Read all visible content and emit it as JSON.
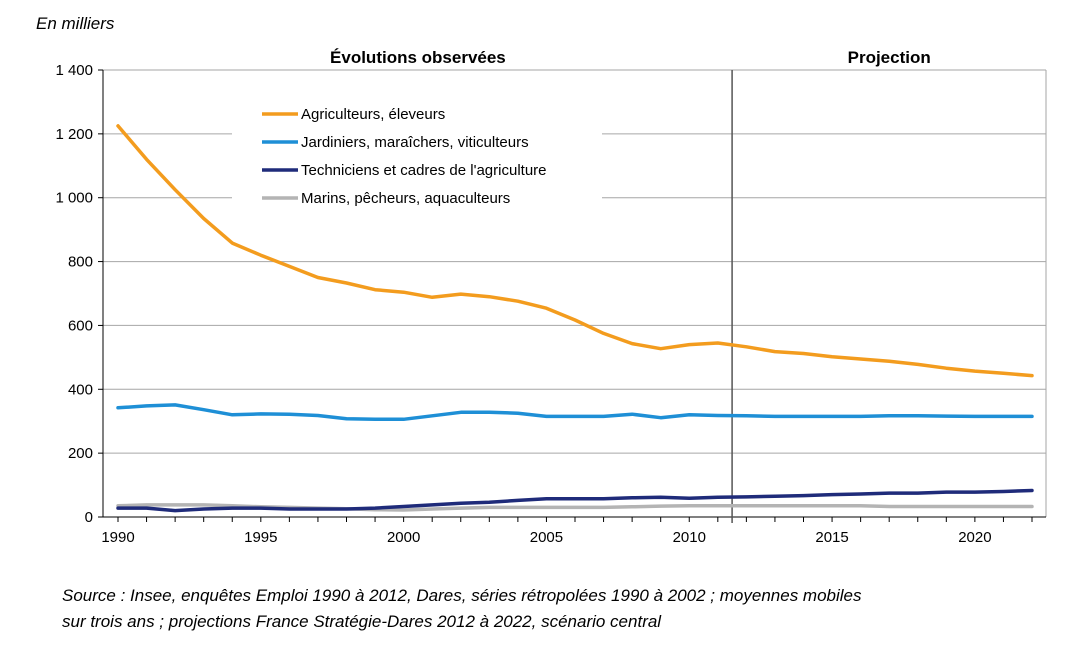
{
  "unit_label": "En milliers",
  "source_line1": "Source : Insee, enquêtes Emploi 1990 à 2012, Dares, séries rétropolées 1990 à 2002 ; moyennes mobiles",
  "source_line2": "sur trois ans ; projections France Stratégie-Dares 2012 à 2022, scénario central",
  "chart_data": {
    "type": "line",
    "title": "",
    "xlabel": "",
    "ylabel": "",
    "xlim": [
      1990,
      2022
    ],
    "ylim": [
      0,
      1400
    ],
    "grid": true,
    "legend_position": "top-left",
    "x_ticks": [
      1990,
      1995,
      2000,
      2005,
      2010,
      2015,
      2020
    ],
    "x_tick_labels": [
      "1990",
      "1995",
      "2000",
      "2005",
      "2010",
      "2015",
      "2020"
    ],
    "y_ticks": [
      0,
      200,
      400,
      600,
      800,
      1000,
      1200,
      1400
    ],
    "y_tick_labels": [
      "0",
      "200",
      "400",
      "600",
      "800",
      "1 000",
      "1 200",
      "1 400"
    ],
    "divider_x": 2011.5,
    "annotations": [
      {
        "text": "Évolutions observées",
        "x": 2000.5
      },
      {
        "text": "Projection",
        "x": 2017.0
      }
    ],
    "x": [
      1990,
      1991,
      1992,
      1993,
      1994,
      1995,
      1996,
      1997,
      1998,
      1999,
      2000,
      2001,
      2002,
      2003,
      2004,
      2005,
      2006,
      2007,
      2008,
      2009,
      2010,
      2011,
      2012,
      2013,
      2014,
      2015,
      2016,
      2017,
      2018,
      2019,
      2020,
      2021,
      2022
    ],
    "series": [
      {
        "name": "Agriculteurs, éleveurs",
        "color": "#f39c1e",
        "values": [
          1225,
          1120,
          1025,
          935,
          858,
          820,
          785,
          750,
          733,
          712,
          704,
          688,
          698,
          690,
          676,
          654,
          617,
          575,
          543,
          527,
          540,
          545,
          533,
          518,
          512,
          502,
          495,
          488,
          478,
          466,
          457,
          450,
          443
        ]
      },
      {
        "name": "Jardiniers, maraîchers, viticulteurs",
        "color": "#1e8fd6",
        "values": [
          342,
          348,
          351,
          336,
          320,
          323,
          322,
          318,
          308,
          306,
          306,
          317,
          328,
          328,
          325,
          315,
          315,
          315,
          322,
          311,
          320,
          318,
          317,
          315,
          315,
          315,
          315,
          317,
          317,
          316,
          315,
          315,
          315
        ]
      },
      {
        "name": "Techniciens et cadres de l'agriculture",
        "color": "#1f2b7a",
        "values": [
          28,
          28,
          20,
          25,
          28,
          28,
          25,
          25,
          25,
          28,
          33,
          38,
          43,
          46,
          52,
          57,
          57,
          57,
          60,
          62,
          59,
          62,
          63,
          65,
          67,
          70,
          72,
          75,
          75,
          78,
          78,
          80,
          83
        ]
      },
      {
        "name": "Marins, pêcheurs, aquaculteurs",
        "color": "#b4b4b4",
        "values": [
          35,
          38,
          38,
          38,
          35,
          32,
          30,
          28,
          26,
          23,
          22,
          25,
          28,
          30,
          30,
          30,
          30,
          30,
          32,
          34,
          35,
          35,
          35,
          35,
          35,
          35,
          35,
          33,
          33,
          33,
          33,
          33,
          33
        ]
      }
    ]
  }
}
